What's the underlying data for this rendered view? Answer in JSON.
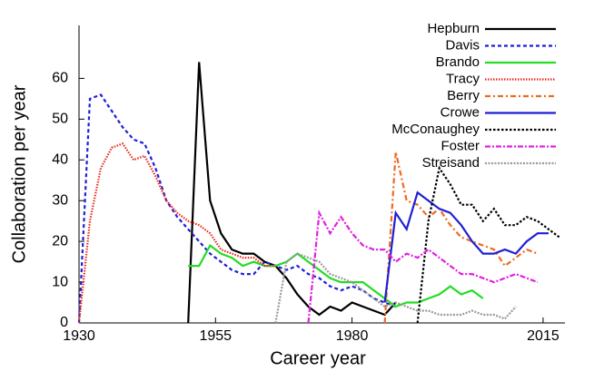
{
  "chart_data": {
    "type": "line",
    "x_label": "Career year",
    "y_label": "Collaboration per year",
    "x": [
      1930,
      1932,
      1934,
      1936,
      1938,
      1940,
      1942,
      1944,
      1946,
      1948,
      1950,
      1952,
      1954,
      1956,
      1958,
      1960,
      1962,
      1964,
      1966,
      1968,
      1970,
      1972,
      1974,
      1976,
      1978,
      1980,
      1982,
      1984,
      1986,
      1988,
      1990,
      1992,
      1994,
      1996,
      1998,
      2000,
      2002,
      2004,
      2006,
      2008,
      2010,
      2012,
      2014,
      2016,
      2018
    ],
    "xlim": [
      1930,
      2019
    ],
    "xticks": [
      1930,
      1955,
      1980,
      2015
    ],
    "ylim": [
      0,
      73
    ],
    "yticks": [
      0,
      10,
      20,
      30,
      40,
      50,
      60
    ],
    "legend": "top-right",
    "series": [
      {
        "name": "Hepburn",
        "color": "#000000",
        "dash": "none",
        "values": [
          null,
          null,
          null,
          null,
          null,
          null,
          null,
          null,
          null,
          null,
          0,
          64,
          30,
          22,
          18,
          17,
          17,
          15,
          14,
          11,
          7,
          4,
          2,
          4,
          3,
          5,
          4,
          3,
          2,
          5,
          null,
          null,
          null,
          null,
          null,
          null,
          null,
          null,
          null,
          null,
          null,
          null,
          null,
          null,
          null
        ]
      },
      {
        "name": "Davis",
        "color": "#1f1fd6",
        "dash": "4,3",
        "values": [
          0,
          55,
          56,
          52,
          48,
          45,
          44,
          38,
          30,
          26,
          23,
          20,
          17,
          15,
          13,
          12,
          12,
          15,
          14,
          13,
          14,
          12,
          11,
          9,
          8,
          9,
          8,
          6,
          5,
          4,
          null,
          null,
          null,
          null,
          null,
          null,
          null,
          null,
          null,
          null,
          null,
          null,
          null,
          null,
          null
        ]
      },
      {
        "name": "Brando",
        "color": "#22dd22",
        "dash": "none",
        "values": [
          null,
          null,
          null,
          null,
          null,
          null,
          null,
          null,
          null,
          null,
          14,
          14,
          19,
          17,
          16,
          14,
          15,
          14,
          14,
          15,
          17,
          15,
          13,
          11,
          10,
          10,
          10,
          8,
          6,
          4,
          5,
          5,
          6,
          7,
          9,
          7,
          8,
          6,
          null,
          null,
          null,
          null,
          null,
          null,
          null
        ]
      },
      {
        "name": "Tracy",
        "color": "#e8291c",
        "dash": "1.5,1.5",
        "values": [
          0,
          25,
          38,
          43,
          44,
          40,
          41,
          36,
          30,
          27,
          25,
          24,
          22,
          18,
          17,
          16,
          16,
          14,
          14,
          null,
          null,
          null,
          null,
          null,
          null,
          null,
          null,
          null,
          null,
          null,
          null,
          null,
          null,
          null,
          null,
          null,
          null,
          null,
          null,
          null,
          null,
          null,
          null,
          null,
          null
        ]
      },
      {
        "name": "Berry",
        "color": "#f06a1e",
        "dash": "6,3,2,3",
        "values": [
          null,
          null,
          null,
          null,
          null,
          null,
          null,
          null,
          null,
          null,
          null,
          null,
          null,
          null,
          null,
          null,
          null,
          null,
          null,
          null,
          null,
          null,
          null,
          null,
          null,
          null,
          null,
          null,
          0,
          42,
          30,
          29,
          26,
          28,
          24,
          21,
          20,
          19,
          18,
          14,
          16,
          18,
          17,
          null,
          null
        ]
      },
      {
        "name": "Crowe",
        "color": "#1f1fd6",
        "dash": "none",
        "values": [
          null,
          null,
          null,
          null,
          null,
          null,
          null,
          null,
          null,
          null,
          null,
          null,
          null,
          null,
          null,
          null,
          null,
          null,
          null,
          null,
          null,
          null,
          null,
          null,
          null,
          null,
          null,
          null,
          5,
          27,
          23,
          32,
          30,
          28,
          27,
          24,
          20,
          17,
          17,
          18,
          17,
          20,
          22,
          22,
          null
        ]
      },
      {
        "name": "McConaughey",
        "color": "#000000",
        "dash": "2.5,2",
        "values": [
          null,
          null,
          null,
          null,
          null,
          null,
          null,
          null,
          null,
          null,
          null,
          null,
          null,
          null,
          null,
          null,
          null,
          null,
          null,
          null,
          null,
          null,
          null,
          null,
          null,
          null,
          null,
          null,
          null,
          null,
          null,
          0,
          25,
          38,
          34,
          29,
          29,
          25,
          28,
          24,
          24,
          26,
          25,
          23,
          21
        ]
      },
      {
        "name": "Foster",
        "color": "#e020e0",
        "dash": "6,2,2,2",
        "values": [
          null,
          null,
          null,
          null,
          null,
          null,
          null,
          null,
          null,
          null,
          null,
          null,
          null,
          null,
          null,
          null,
          null,
          null,
          null,
          null,
          null,
          0,
          27,
          22,
          26,
          22,
          19,
          18,
          18,
          15,
          17,
          16,
          18,
          16,
          14,
          12,
          12,
          11,
          10,
          11,
          12,
          11,
          10,
          null,
          null
        ]
      },
      {
        "name": "Streisand",
        "color": "#999999",
        "dash": "2,1.5",
        "values": [
          null,
          null,
          null,
          null,
          null,
          null,
          null,
          null,
          null,
          null,
          null,
          null,
          null,
          null,
          null,
          null,
          null,
          null,
          0,
          15,
          17,
          16,
          15,
          12,
          11,
          10,
          8,
          6,
          4,
          5,
          4,
          3,
          3,
          2,
          2,
          2,
          3,
          2,
          2,
          1,
          4,
          null,
          null,
          null,
          null
        ]
      }
    ]
  }
}
